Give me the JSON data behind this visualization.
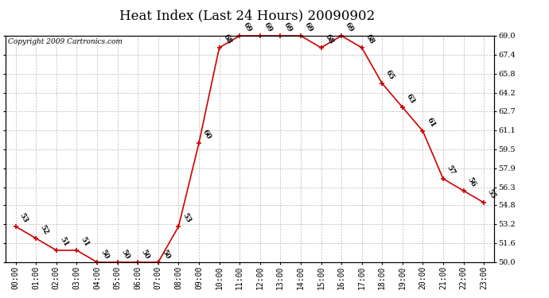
{
  "title": "Heat Index (Last 24 Hours) 20090902",
  "copyright": "Copyright 2009 Cartronics.com",
  "hours": [
    "00:00",
    "01:00",
    "02:00",
    "03:00",
    "04:00",
    "05:00",
    "06:00",
    "07:00",
    "08:00",
    "09:00",
    "10:00",
    "11:00",
    "12:00",
    "13:00",
    "14:00",
    "15:00",
    "16:00",
    "17:00",
    "18:00",
    "19:00",
    "20:00",
    "21:00",
    "22:00",
    "23:00"
  ],
  "values": [
    53,
    52,
    51,
    51,
    50,
    50,
    50,
    50,
    53,
    60,
    68,
    69,
    69,
    69,
    69,
    68,
    69,
    68,
    65,
    63,
    61,
    57,
    56,
    55
  ],
  "ylim": [
    50.0,
    69.0
  ],
  "yticks": [
    50.0,
    51.6,
    53.2,
    54.8,
    56.3,
    57.9,
    59.5,
    61.1,
    62.7,
    64.2,
    65.8,
    67.4,
    69.0
  ],
  "line_color": "#cc0000",
  "marker": "+",
  "bg_color": "#ffffff",
  "grid_color": "#bbbbbb",
  "title_fontsize": 12,
  "annot_fontsize": 6.5,
  "copyright_fontsize": 6.5,
  "tick_fontsize": 7.0
}
